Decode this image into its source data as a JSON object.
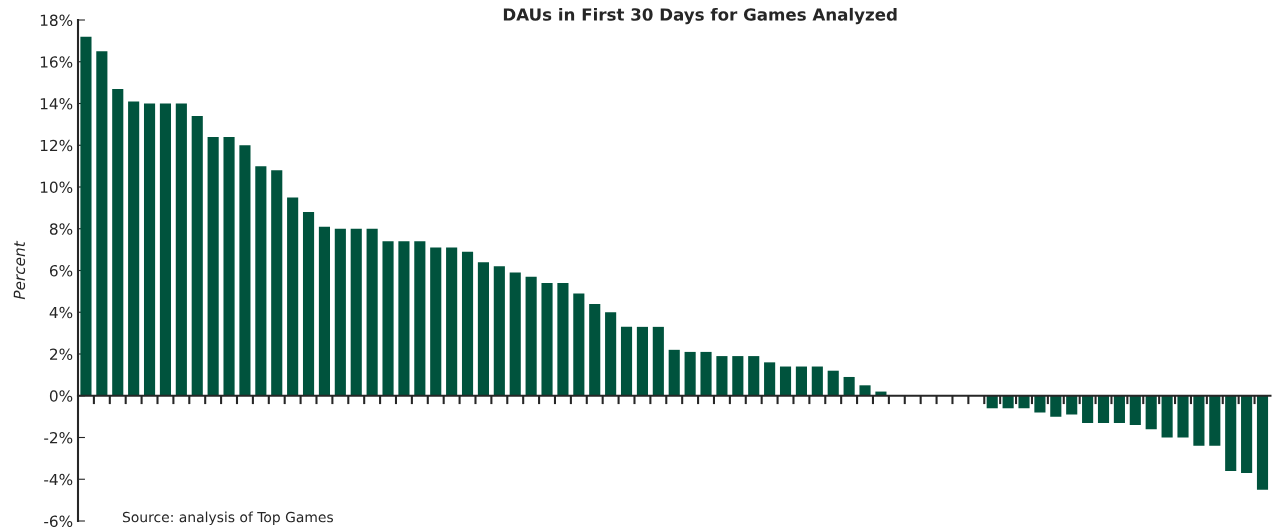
{
  "chart_data": {
    "type": "bar",
    "title": "DAUs in First 30 Days for Games Analyzed",
    "ylabel": "Percent",
    "categories": [
      null,
      null,
      null,
      null,
      null,
      null,
      null,
      null,
      null,
      null,
      null,
      null,
      null,
      null,
      null,
      null,
      null,
      null,
      null,
      null,
      null,
      null,
      null,
      null,
      null,
      null,
      null,
      null,
      null,
      null,
      null,
      null,
      null,
      null,
      null,
      null,
      null,
      null,
      null,
      null,
      null,
      null,
      null,
      null,
      null,
      null,
      null,
      null,
      null,
      null,
      null,
      null,
      null,
      null,
      null,
      null,
      null,
      null,
      null,
      null,
      null,
      null,
      null,
      null,
      null,
      null,
      null,
      null,
      null,
      null,
      null,
      null,
      null,
      null,
      null
    ],
    "values": [
      17.2,
      16.5,
      14.7,
      14.1,
      14.0,
      14.0,
      14.0,
      13.4,
      12.4,
      12.4,
      12.0,
      11.0,
      10.8,
      9.5,
      8.8,
      8.1,
      8.0,
      8.0,
      8.0,
      7.4,
      7.4,
      7.4,
      7.1,
      7.1,
      6.9,
      6.4,
      6.2,
      5.9,
      5.7,
      5.4,
      5.4,
      4.9,
      4.4,
      4.0,
      3.3,
      3.3,
      3.3,
      2.2,
      2.1,
      2.1,
      1.9,
      1.9,
      1.9,
      1.6,
      1.4,
      1.4,
      1.4,
      1.2,
      0.9,
      0.5,
      0.2,
      0,
      0,
      0,
      0,
      0,
      0,
      -0.6,
      -0.6,
      -0.6,
      -0.8,
      -1.0,
      -0.9,
      -1.3,
      -1.3,
      -1.3,
      -1.4,
      -1.6,
      -2.0,
      -2.0,
      -2.4,
      -2.4,
      -3.6,
      -3.7,
      -4.5
    ],
    "color": "#00533d",
    "ylim": [
      -6,
      18
    ],
    "yticks": [
      {
        "value": -6,
        "label": "-6%"
      },
      {
        "value": -4,
        "label": "-4%"
      },
      {
        "value": -2,
        "label": "-2%"
      },
      {
        "value": 0,
        "label": "0%"
      },
      {
        "value": 2,
        "label": "2%"
      },
      {
        "value": 4,
        "label": "4%"
      },
      {
        "value": 6,
        "label": "6%"
      },
      {
        "value": 8,
        "label": "8%"
      },
      {
        "value": 10,
        "label": "10%"
      },
      {
        "value": 12,
        "label": "12%"
      },
      {
        "value": 14,
        "label": "14%"
      },
      {
        "value": 16,
        "label": "16%"
      },
      {
        "value": 18,
        "label": "18%"
      }
    ],
    "legend": false,
    "annotations": [
      "Source: analysis of Top Games"
    ]
  }
}
